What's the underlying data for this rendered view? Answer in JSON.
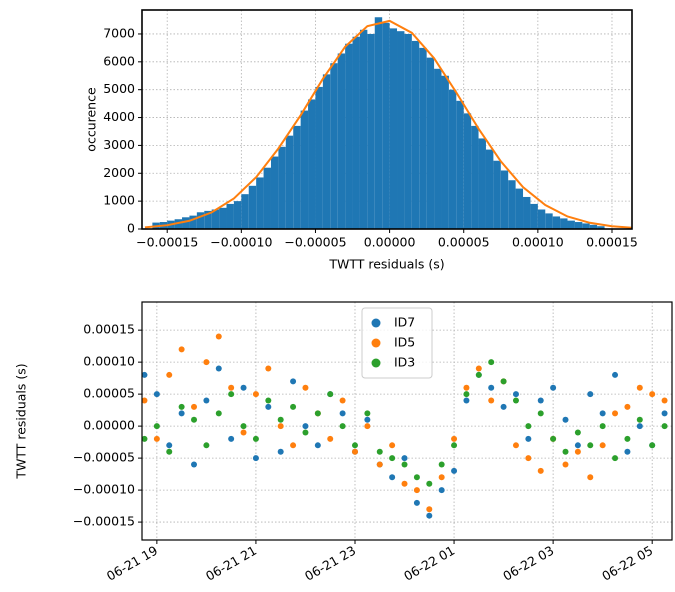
{
  "chart_data": [
    {
      "type": "histogram",
      "xlabel": "TWTT residuals (s)",
      "ylabel": "occurence",
      "color": "#1f77b4",
      "grid": true,
      "bins": [
        -0.00016,
        -0.000155,
        -0.00015,
        -0.000145,
        -0.00014,
        -0.000135,
        -0.00013,
        -0.000125,
        -0.00012,
        -0.000115,
        -0.00011,
        -0.000105,
        -0.0001,
        -9.5e-05,
        -9e-05,
        -8.5e-05,
        -8e-05,
        -7.5e-05,
        -7e-05,
        -6.5e-05,
        -6e-05,
        -5.5e-05,
        -5e-05,
        -4.5e-05,
        -4e-05,
        -3.5e-05,
        -3e-05,
        -2.5e-05,
        -2e-05,
        -1.5e-05,
        -1e-05,
        -5e-06,
        0,
        5e-06,
        1e-05,
        1.5e-05,
        2e-05,
        2.5e-05,
        3e-05,
        3.5e-05,
        4e-05,
        4.5e-05,
        5e-05,
        5.5e-05,
        6e-05,
        6.5e-05,
        7e-05,
        7.5e-05,
        8e-05,
        8.5e-05,
        9e-05,
        9.5e-05,
        0.0001,
        0.000105,
        0.00011,
        0.000115,
        0.00012,
        0.000125,
        0.00013,
        0.000135,
        0.00014,
        0.000145
      ],
      "counts": [
        230,
        250,
        300,
        350,
        420,
        480,
        600,
        650,
        700,
        760,
        900,
        1000,
        1250,
        1550,
        1850,
        2200,
        2600,
        2950,
        3350,
        3700,
        4250,
        4650,
        5100,
        5550,
        5950,
        6300,
        6650,
        6900,
        7150,
        7000,
        7600,
        7400,
        7200,
        7100,
        7000,
        6750,
        6500,
        6150,
        5750,
        5500,
        5000,
        4600,
        4150,
        3700,
        3250,
        2850,
        2450,
        2100,
        1750,
        1450,
        1150,
        900,
        700,
        560,
        450,
        380,
        300,
        250,
        200,
        150,
        100
      ],
      "fit": {
        "color": "#ff7f0e",
        "x": [
          -0.000165,
          -0.00015,
          -0.000135,
          -0.00012,
          -0.000105,
          -9e-05,
          -7.5e-05,
          -6e-05,
          -4.5e-05,
          -3e-05,
          -1.5e-05,
          0,
          1.5e-05,
          3e-05,
          4.5e-05,
          6e-05,
          7.5e-05,
          9e-05,
          0.000105,
          0.00012,
          0.000135,
          0.00015,
          0.000165
        ],
        "values": [
          58,
          137,
          296,
          596,
          1095,
          1860,
          2890,
          4080,
          5390,
          6540,
          7280,
          7470,
          7040,
          6130,
          4900,
          3600,
          2430,
          1500,
          860,
          450,
          223,
          99,
          40
        ]
      },
      "xlim": [
        -0.000167,
        0.0001635
      ],
      "xticks": [
        {
          "value": -0.00015,
          "label": "−0.00015"
        },
        {
          "value": -0.0001,
          "label": "−0.00010"
        },
        {
          "value": -5e-05,
          "label": "−0.00005"
        },
        {
          "value": 0,
          "label": "0.00000"
        },
        {
          "value": 5e-05,
          "label": "0.00005"
        },
        {
          "value": 0.0001,
          "label": "0.00010"
        },
        {
          "value": 0.00015,
          "label": "0.00015"
        }
      ],
      "ylim": [
        0,
        7860
      ],
      "yticks": [
        0,
        1000,
        2000,
        3000,
        4000,
        5000,
        6000,
        7000
      ]
    },
    {
      "type": "scatter",
      "ylabel": "TWTT residuals (s)",
      "grid": true,
      "legend": "upper center",
      "x": [
        "06-21 18:45",
        "06-21 19:00",
        "06-21 19:15",
        "06-21 19:30",
        "06-21 19:45",
        "06-21 20:00",
        "06-21 20:15",
        "06-21 20:30",
        "06-21 20:45",
        "06-21 21:00",
        "06-21 21:15",
        "06-21 21:30",
        "06-21 21:45",
        "06-21 22:00",
        "06-21 22:15",
        "06-21 22:30",
        "06-21 22:45",
        "06-21 23:00",
        "06-21 23:15",
        "06-21 23:30",
        "06-21 23:45",
        "06-22 00:00",
        "06-22 00:15",
        "06-22 00:30",
        "06-22 00:45",
        "06-22 01:00",
        "06-22 01:15",
        "06-22 01:30",
        "06-22 01:45",
        "06-22 02:00",
        "06-22 02:15",
        "06-22 02:30",
        "06-22 02:45",
        "06-22 03:00",
        "06-22 03:15",
        "06-22 03:30",
        "06-22 03:45",
        "06-22 04:00",
        "06-22 04:15",
        "06-22 04:30",
        "06-22 04:45",
        "06-22 05:00",
        "06-22 05:15"
      ],
      "series": [
        {
          "name": "ID7",
          "color": "#1f77b4",
          "values": [
            8e-05,
            5e-05,
            -3e-05,
            2e-05,
            -6e-05,
            4e-05,
            9e-05,
            -2e-05,
            6e-05,
            -5e-05,
            3e-05,
            -4e-05,
            7e-05,
            0,
            -3e-05,
            5e-05,
            2e-05,
            -4e-05,
            1e-05,
            -6e-05,
            -8e-05,
            -5e-05,
            -0.00012,
            -0.00014,
            -0.0001,
            -7e-05,
            4e-05,
            8e-05,
            6e-05,
            3e-05,
            5e-05,
            -2e-05,
            4e-05,
            6e-05,
            1e-05,
            -3e-05,
            5e-05,
            2e-05,
            8e-05,
            -4e-05,
            0,
            -3e-05,
            2e-05
          ]
        },
        {
          "name": "ID5",
          "color": "#ff7f0e",
          "values": [
            4e-05,
            -2e-05,
            8e-05,
            0.00012,
            3e-05,
            0.0001,
            0.00014,
            6e-05,
            -1e-05,
            5e-05,
            9e-05,
            0,
            -3e-05,
            6e-05,
            2e-05,
            -2e-05,
            4e-05,
            -4e-05,
            0,
            -6e-05,
            -3e-05,
            -9e-05,
            -0.0001,
            -0.00013,
            -8e-05,
            -2e-05,
            6e-05,
            9e-05,
            4e-05,
            7e-05,
            -3e-05,
            -5e-05,
            -7e-05,
            -2e-05,
            -6e-05,
            -4e-05,
            -8e-05,
            -3e-05,
            2e-05,
            3e-05,
            6e-05,
            5e-05,
            4e-05
          ]
        },
        {
          "name": "ID3",
          "color": "#2ca02c",
          "values": [
            -2e-05,
            0,
            -4e-05,
            3e-05,
            1e-05,
            -3e-05,
            2e-05,
            5e-05,
            0,
            -2e-05,
            4e-05,
            1e-05,
            3e-05,
            -1e-05,
            2e-05,
            5e-05,
            0,
            -3e-05,
            2e-05,
            -4e-05,
            -5e-05,
            -6e-05,
            -8e-05,
            -9e-05,
            -6e-05,
            -3e-05,
            5e-05,
            8e-05,
            0.0001,
            7e-05,
            4e-05,
            0,
            2e-05,
            -2e-05,
            -4e-05,
            -1e-05,
            -3e-05,
            0,
            -5e-05,
            -2e-05,
            1e-05,
            -3e-05,
            0
          ]
        }
      ],
      "xlim": [
        "06-21 18:42",
        "06-22 05:24"
      ],
      "xticks": [
        {
          "value": "06-21 19:00",
          "label": "06-21 19"
        },
        {
          "value": "06-21 21:00",
          "label": "06-21 21"
        },
        {
          "value": "06-21 23:00",
          "label": "06-21 23"
        },
        {
          "value": "06-22 01:00",
          "label": "06-22 01"
        },
        {
          "value": "06-22 03:00",
          "label": "06-22 03"
        },
        {
          "value": "06-22 05:00",
          "label": "06-22 05"
        }
      ],
      "ylim": [
        -0.000178,
        0.000194
      ],
      "yticks": [
        {
          "value": 0.00015,
          "label": "0.00015"
        },
        {
          "value": 0.0001,
          "label": "0.00010"
        },
        {
          "value": 5e-05,
          "label": "0.00005"
        },
        {
          "value": 0,
          "label": "0.00000"
        },
        {
          "value": -5e-05,
          "label": "−0.00005"
        },
        {
          "value": -0.0001,
          "label": "−0.00010"
        },
        {
          "value": -0.00015,
          "label": "−0.00015"
        }
      ]
    }
  ]
}
